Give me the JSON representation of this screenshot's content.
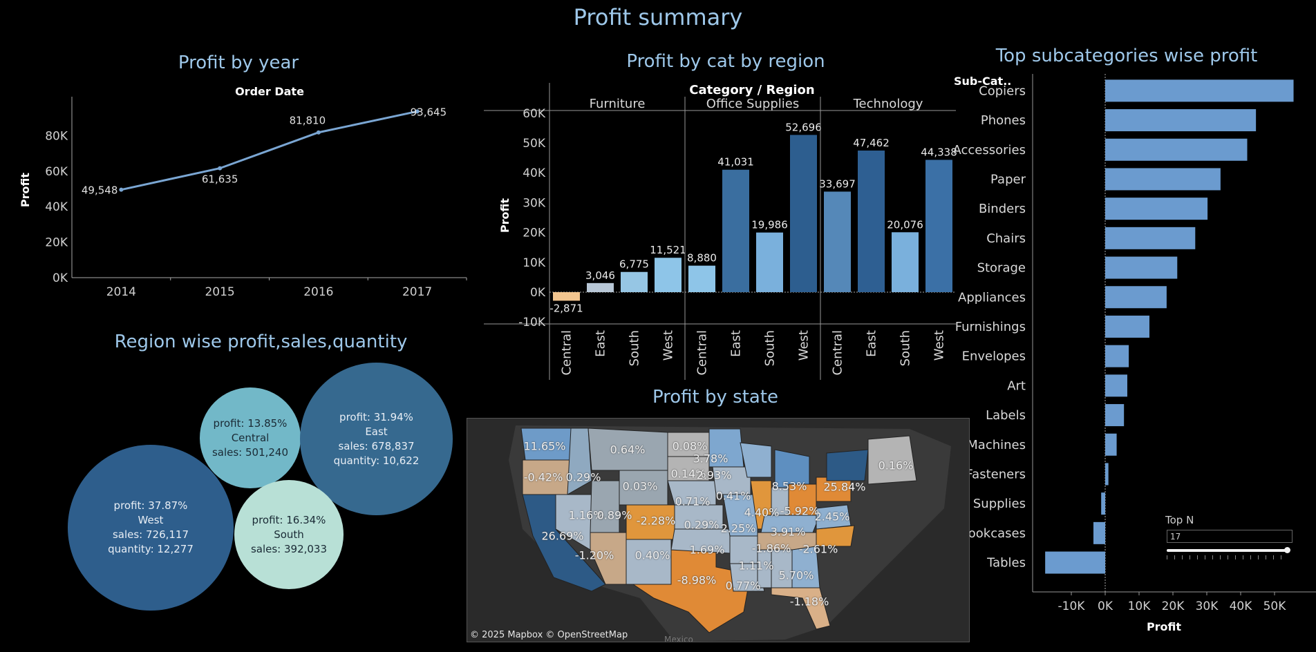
{
  "dashboard": {
    "title": "Profit summary"
  },
  "panels": {
    "year": "Profit by year",
    "catregion": "Profit by cat by region",
    "subcat": "Top subcategories wise profit",
    "region": "Region wise profit,sales,quantity",
    "state": "Profit by state"
  },
  "chart_data": [
    {
      "type": "line",
      "title": "Profit by year",
      "top_label": "Order Date",
      "ylabel": "Profit",
      "x": [
        "2014",
        "2015",
        "2016",
        "2017"
      ],
      "values": [
        49548,
        61635,
        81810,
        93645
      ],
      "data_labels": [
        "49,548",
        "61,635",
        "81,810",
        "93,645"
      ],
      "ylim": [
        0,
        100000
      ],
      "yticks": [
        "0K",
        "20K",
        "40K",
        "60K",
        "80K"
      ],
      "color": "#7aa6d3"
    },
    {
      "type": "bar",
      "title": "Profit by cat by region",
      "header": "Category / Region",
      "ylabel": "Profit",
      "groups": [
        "Furniture",
        "Office Supplies",
        "Technology"
      ],
      "regions": [
        "Central",
        "East",
        "South",
        "West"
      ],
      "values": [
        [
          -2871,
          3046,
          6775,
          11521
        ],
        [
          8880,
          41031,
          19986,
          52696
        ],
        [
          33697,
          47462,
          20076,
          44338
        ]
      ],
      "data_labels": [
        [
          "-2,871",
          "3,046",
          "6,775",
          "11,521"
        ],
        [
          "8,880",
          "41,031",
          "19,986",
          "52,696"
        ],
        [
          "33,697",
          "47,462",
          "20,076",
          "44,338"
        ]
      ],
      "yticks": [
        "-10K",
        "0K",
        "10K",
        "20K",
        "30K",
        "40K",
        "50K",
        "60K"
      ],
      "ylim": [
        -10000,
        60000
      ]
    },
    {
      "type": "bar",
      "orientation": "horizontal",
      "title": "Top subcategories wise profit",
      "row_header": "Sub-Cat..",
      "xlabel": "Profit",
      "categories": [
        "Copiers",
        "Phones",
        "Accessories",
        "Paper",
        "Binders",
        "Chairs",
        "Storage",
        "Appliances",
        "Furnishings",
        "Envelopes",
        "Art",
        "Labels",
        "Machines",
        "Fasteners",
        "Supplies",
        "Bookcases",
        "Tables"
      ],
      "values": [
        55618,
        44516,
        41937,
        34054,
        30222,
        26590,
        21279,
        18138,
        13059,
        6964,
        6528,
        5546,
        3385,
        950,
        -1189,
        -3473,
        -17725
      ],
      "xticks": [
        "-10K",
        "0K",
        "10K",
        "20K",
        "30K",
        "40K",
        "50K"
      ],
      "xlim": [
        -20000,
        60000
      ],
      "color": "#6b9bcf"
    },
    {
      "type": "bubble",
      "title": "Region wise profit,sales,quantity",
      "bubbles": [
        {
          "region": "West",
          "lines": [
            "profit: 37.87%",
            "West",
            "sales: 726,117",
            "quantity: 12,277"
          ],
          "color": "#2e5e8c",
          "text_color": "#e8eef5"
        },
        {
          "region": "Central",
          "lines": [
            "profit: 13.85%",
            "Central",
            "sales: 501,240"
          ],
          "color": "#72b8c8",
          "text_color": "#1a2a35"
        },
        {
          "region": "East",
          "lines": [
            "profit: 31.94%",
            "East",
            "sales: 678,837",
            "quantity: 10,622"
          ],
          "color": "#36698f",
          "text_color": "#e8eef5"
        },
        {
          "region": "South",
          "lines": [
            "profit: 16.34%",
            "South",
            "sales: 392,033"
          ],
          "color": "#b8e0d6",
          "text_color": "#1a2a35"
        }
      ]
    }
  ],
  "state_map": {
    "credit": "© 2025 Mapbox © OpenStreetMap",
    "country_label": "Mexico",
    "labels": [
      "11.65%",
      "-0.42%",
      "0.29%",
      "0.64%",
      "0.08%",
      "3.78%",
      "0.03%",
      "0.14%",
      "2.93%",
      "0.16%",
      "1.16%",
      "0.89%",
      "-2.28%",
      "0.71%",
      "0.41%",
      "8.53%",
      "25.84%",
      "26.69%",
      "0.29%",
      "2.25%",
      "4.40%",
      "-5.92%",
      "2.45%",
      "3.91%",
      "-1.20%",
      "0.40%",
      "1.69%",
      "-1.86%",
      "-2.61%",
      "1.11%",
      "-8.98%",
      "0.77%",
      "5.70%",
      "-1.18%"
    ]
  },
  "topn": {
    "title": "Top N",
    "value": "17"
  }
}
